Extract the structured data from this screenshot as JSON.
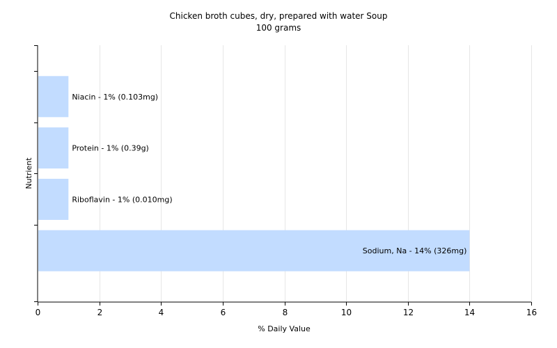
{
  "chart_data": {
    "type": "bar",
    "orientation": "horizontal",
    "title": "Chicken broth cubes, dry, prepared with water Soup",
    "subtitle": "100 grams",
    "xlabel": "% Daily Value",
    "ylabel": "Nutrient",
    "xlim": [
      0,
      16
    ],
    "xticks": [
      0,
      2,
      4,
      6,
      8,
      10,
      12,
      14,
      16
    ],
    "grid": true,
    "bar_color": "#c2dcff",
    "categories": [
      "Niacin",
      "Protein",
      "Riboflavin",
      "Sodium, Na"
    ],
    "values": [
      1,
      1,
      1,
      14
    ],
    "labels": [
      "Niacin - 1% (0.103mg)",
      "Protein - 1% (0.39g)",
      "Riboflavin - 1% (0.010mg)",
      "Sodium, Na - 14% (326mg)"
    ]
  }
}
